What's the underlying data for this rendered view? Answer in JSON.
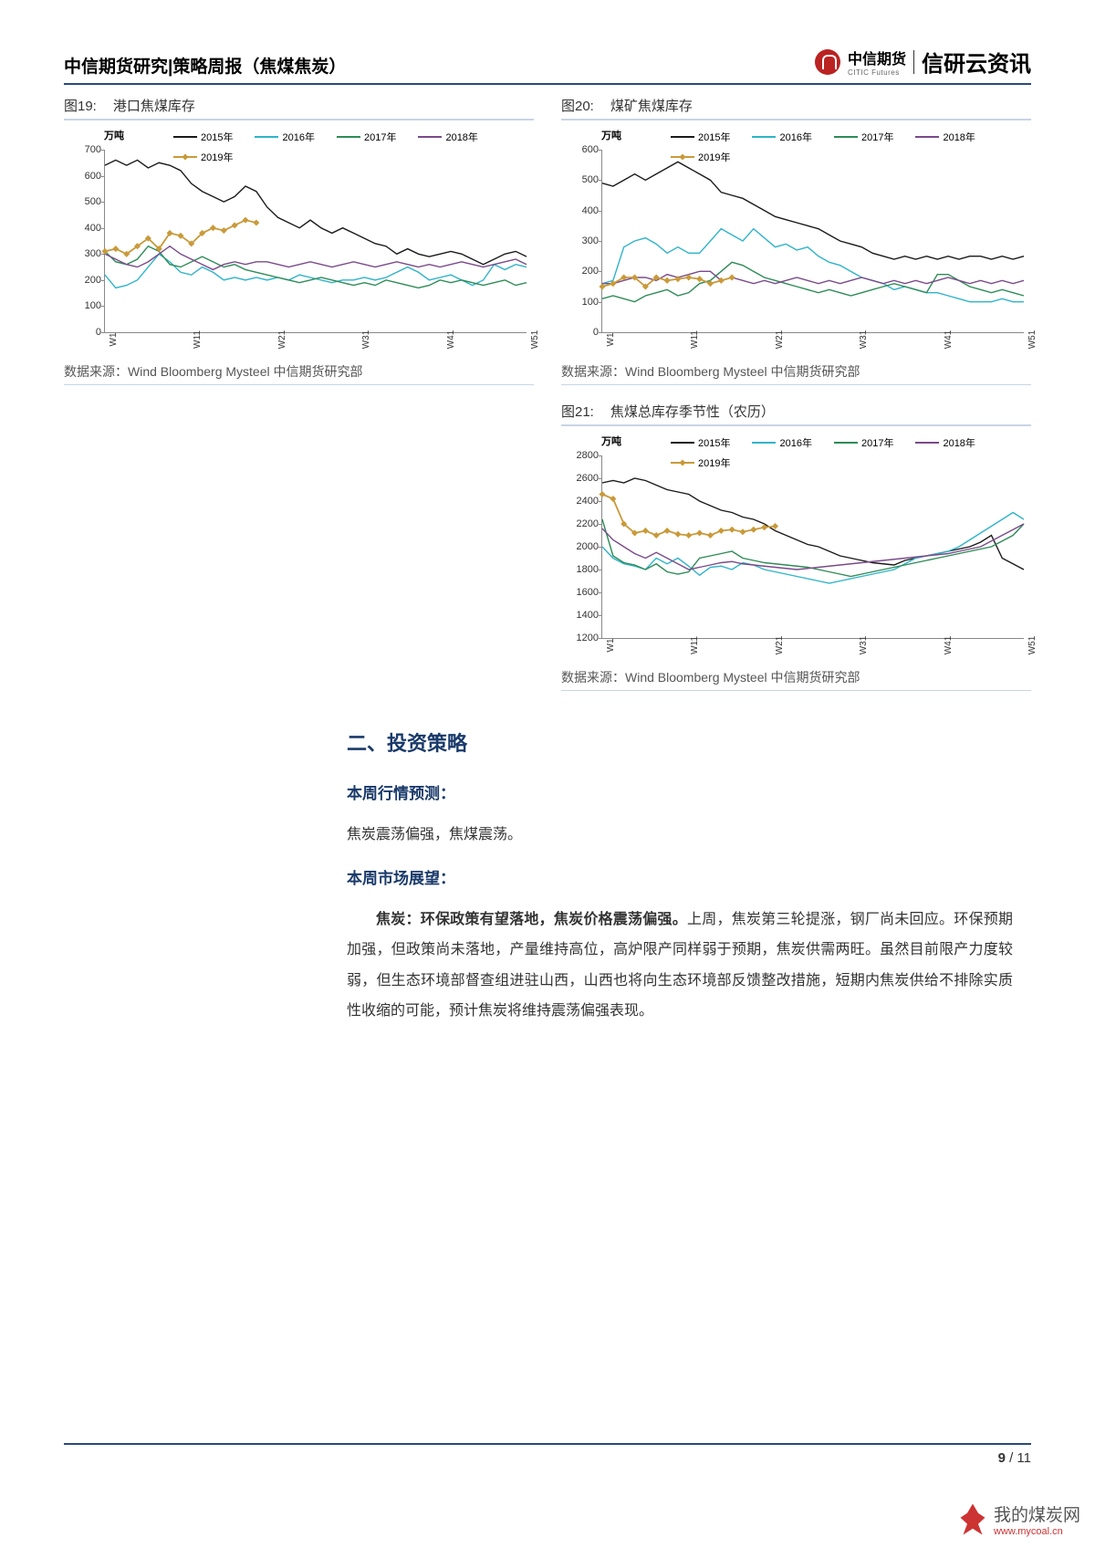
{
  "header": {
    "left": "中信期货研究|策略周报（焦煤焦炭）",
    "logo_cn": "中信期货",
    "logo_en": "CITIC Futures",
    "brand": "信研云资讯"
  },
  "legend_labels": {
    "y2015": "2015年",
    "y2016": "2016年",
    "y2017": "2017年",
    "y2018": "2018年",
    "y2019": "2019年"
  },
  "colors": {
    "y2015": "#1a1a1a",
    "y2016": "#2fb4c9",
    "y2017": "#2e8b57",
    "y2018": "#7a4a8a",
    "y2019": "#c99a3a",
    "y2019_fill": "#c99a3a"
  },
  "x_ticks": [
    "W1",
    "W11",
    "W21",
    "W31",
    "W41",
    "W51"
  ],
  "chart19": {
    "label": "图19:",
    "title": "港口焦煤库存",
    "ylabel": "万吨",
    "ymin": 0,
    "ymax": 700,
    "ystep": 100,
    "series": {
      "y2015": [
        640,
        660,
        640,
        660,
        630,
        650,
        640,
        620,
        570,
        540,
        520,
        500,
        520,
        560,
        540,
        480,
        440,
        420,
        400,
        430,
        400,
        380,
        400,
        380,
        360,
        340,
        330,
        300,
        320,
        300,
        290,
        300,
        310,
        300,
        280,
        260,
        280,
        300,
        310,
        290
      ],
      "y2016": [
        220,
        170,
        180,
        200,
        250,
        300,
        270,
        230,
        220,
        250,
        230,
        200,
        210,
        200,
        210,
        200,
        210,
        200,
        220,
        210,
        200,
        190,
        200,
        200,
        210,
        200,
        210,
        230,
        250,
        230,
        200,
        210,
        220,
        200,
        180,
        200,
        260,
        240,
        260,
        250
      ],
      "y2017": [
        310,
        270,
        260,
        280,
        330,
        310,
        260,
        250,
        270,
        290,
        270,
        250,
        260,
        240,
        230,
        220,
        210,
        200,
        190,
        200,
        210,
        200,
        190,
        180,
        190,
        180,
        200,
        190,
        180,
        170,
        180,
        200,
        190,
        200,
        190,
        180,
        190,
        200,
        180,
        190
      ],
      "y2018": [
        300,
        280,
        260,
        250,
        270,
        300,
        330,
        300,
        280,
        260,
        240,
        260,
        270,
        260,
        270,
        270,
        260,
        250,
        260,
        270,
        260,
        250,
        260,
        270,
        260,
        250,
        260,
        270,
        260,
        250,
        260,
        250,
        260,
        270,
        260,
        250,
        260,
        270,
        280,
        260
      ],
      "y2019": [
        310,
        320,
        300,
        330,
        360,
        320,
        380,
        370,
        340,
        380,
        400,
        390,
        410,
        430,
        420
      ]
    }
  },
  "chart20": {
    "label": "图20:",
    "title": "煤矿焦煤库存",
    "ylabel": "万吨",
    "ymin": 0,
    "ymax": 600,
    "ystep": 100,
    "series": {
      "y2015": [
        490,
        480,
        500,
        520,
        500,
        520,
        540,
        560,
        540,
        520,
        500,
        460,
        450,
        440,
        420,
        400,
        380,
        370,
        360,
        350,
        340,
        320,
        300,
        290,
        280,
        260,
        250,
        240,
        250,
        240,
        250,
        240,
        250,
        240,
        250,
        250,
        240,
        250,
        240,
        250
      ],
      "y2016": [
        160,
        170,
        280,
        300,
        310,
        290,
        260,
        280,
        260,
        260,
        300,
        340,
        320,
        300,
        340,
        310,
        280,
        290,
        270,
        280,
        250,
        230,
        220,
        200,
        180,
        170,
        160,
        140,
        150,
        140,
        130,
        130,
        120,
        110,
        100,
        100,
        100,
        110,
        100,
        100
      ],
      "y2017": [
        110,
        120,
        110,
        100,
        120,
        130,
        140,
        120,
        130,
        160,
        170,
        200,
        230,
        220,
        200,
        180,
        170,
        160,
        150,
        140,
        130,
        140,
        130,
        120,
        130,
        140,
        150,
        160,
        150,
        140,
        130,
        190,
        190,
        170,
        150,
        140,
        130,
        140,
        130,
        120
      ],
      "y2018": [
        160,
        160,
        170,
        180,
        180,
        170,
        190,
        180,
        190,
        200,
        200,
        170,
        180,
        170,
        160,
        170,
        160,
        170,
        180,
        170,
        160,
        170,
        160,
        170,
        180,
        170,
        160,
        170,
        160,
        170,
        160,
        170,
        180,
        170,
        160,
        170,
        160,
        170,
        160,
        170
      ],
      "y2019": [
        150,
        160,
        180,
        180,
        150,
        180,
        170,
        175,
        180,
        175,
        160,
        170,
        180
      ]
    }
  },
  "chart21": {
    "label": "图21:",
    "title": "焦煤总库存季节性（农历）",
    "ylabel": "万吨",
    "ymin": 1200,
    "ymax": 2800,
    "ystep": 200,
    "series": {
      "y2015": [
        2560,
        2580,
        2560,
        2600,
        2580,
        2540,
        2500,
        2480,
        2460,
        2400,
        2360,
        2320,
        2300,
        2260,
        2240,
        2200,
        2140,
        2100,
        2060,
        2020,
        2000,
        1960,
        1920,
        1900,
        1880,
        1860,
        1850,
        1840,
        1880,
        1900,
        1920,
        1940,
        1960,
        1980,
        2000,
        2040,
        2100,
        1900,
        1850,
        1800
      ],
      "y2016": [
        2000,
        1900,
        1850,
        1830,
        1800,
        1900,
        1850,
        1900,
        1830,
        1750,
        1820,
        1830,
        1800,
        1860,
        1840,
        1800,
        1780,
        1760,
        1740,
        1720,
        1700,
        1680,
        1700,
        1720,
        1740,
        1760,
        1780,
        1800,
        1850,
        1900,
        1920,
        1940,
        1960,
        2000,
        2060,
        2120,
        2180,
        2240,
        2300,
        2240
      ],
      "y2017": [
        2240,
        1920,
        1860,
        1840,
        1800,
        1850,
        1780,
        1760,
        1780,
        1900,
        1920,
        1940,
        1960,
        1900,
        1880,
        1860,
        1850,
        1840,
        1830,
        1820,
        1800,
        1780,
        1760,
        1740,
        1760,
        1780,
        1800,
        1820,
        1840,
        1860,
        1880,
        1900,
        1920,
        1940,
        1960,
        1980,
        2000,
        2050,
        2100,
        2200
      ],
      "y2018": [
        2160,
        2060,
        2000,
        1940,
        1900,
        1950,
        1900,
        1850,
        1800,
        1820,
        1840,
        1860,
        1870,
        1850,
        1840,
        1830,
        1820,
        1810,
        1800,
        1810,
        1820,
        1830,
        1840,
        1850,
        1860,
        1870,
        1880,
        1890,
        1900,
        1910,
        1920,
        1930,
        1940,
        1960,
        1980,
        2000,
        2050,
        2100,
        2150,
        2200
      ],
      "y2019": [
        2460,
        2420,
        2200,
        2120,
        2140,
        2100,
        2140,
        2110,
        2100,
        2120,
        2100,
        2140,
        2150,
        2130,
        2150,
        2170,
        2180
      ]
    }
  },
  "source": {
    "label": "数据来源：",
    "text": "Wind Bloomberg Mysteel 中信期货研究部"
  },
  "text": {
    "section": "二、投资策略",
    "sub1": "本周行情预测：",
    "p1": "焦炭震荡偏强，焦煤震荡。",
    "sub2": "本周市场展望：",
    "p2_bold": "焦炭：环保政策有望落地，焦炭价格震荡偏强。",
    "p2_rest": "上周，焦炭第三轮提涨，钢厂尚未回应。环保预期加强，但政策尚未落地，产量维持高位，高炉限产同样弱于预期，焦炭供需两旺。虽然目前限产力度较弱，但生态环境部督查组进驻山西，山西也将向生态环境部反馈整改措施，短期内焦炭供给不排除实质性收缩的可能，预计焦炭将维持震荡偏强表现。"
  },
  "footer": {
    "cur": "9",
    "sep": " / ",
    "total": "11"
  },
  "watermark": {
    "cn": "我的煤炭网",
    "en": "www.mycoal.cn"
  }
}
